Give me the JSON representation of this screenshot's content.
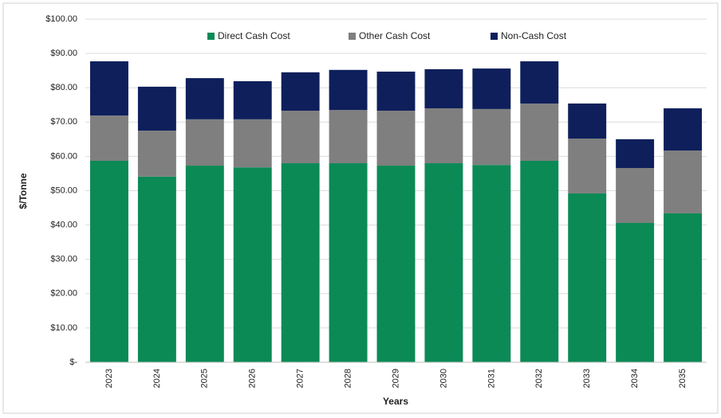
{
  "chart_data": {
    "type": "stacked_bar",
    "y_label": "$/Tonne",
    "x_label": "Years",
    "categories": [
      "2023",
      "2024",
      "2025",
      "2026",
      "2027",
      "2028",
      "2029",
      "2030",
      "2031",
      "2032",
      "2033",
      "2034",
      "2035"
    ],
    "series": [
      {
        "name": "Direct Cash Cost",
        "color": "#0b8a56",
        "values": [
          58.7,
          54.1,
          57.3,
          56.8,
          58.0,
          58.0,
          57.3,
          58.0,
          57.5,
          58.7,
          49.2,
          40.6,
          43.4
        ]
      },
      {
        "name": "Other Cash Cost",
        "color": "#7f7f7f",
        "values": [
          13.2,
          13.4,
          13.5,
          14.0,
          15.3,
          15.5,
          16.0,
          16.0,
          16.3,
          16.7,
          16.0,
          16.0,
          18.3
        ]
      },
      {
        "name": "Non-Cash Cost",
        "color": "#0e1f5b",
        "values": [
          15.8,
          12.8,
          12.0,
          11.1,
          11.2,
          11.7,
          11.4,
          11.4,
          11.8,
          12.3,
          10.2,
          8.4,
          12.3
        ]
      }
    ],
    "ylim": [
      0,
      100
    ],
    "yticks": [
      {
        "value": 0,
        "label": "$-"
      },
      {
        "value": 10,
        "label": "$10.00"
      },
      {
        "value": 20,
        "label": "$20.00"
      },
      {
        "value": 30,
        "label": "$30.00"
      },
      {
        "value": 40,
        "label": "$40.00"
      },
      {
        "value": 50,
        "label": "$50.00"
      },
      {
        "value": 60,
        "label": "$60.00"
      },
      {
        "value": 70,
        "label": "$70.00"
      },
      {
        "value": 80,
        "label": "$80.00"
      },
      {
        "value": 90,
        "label": "$90.00"
      },
      {
        "value": 100,
        "label": "$100.00"
      }
    ],
    "grid": true,
    "legend": "top"
  }
}
